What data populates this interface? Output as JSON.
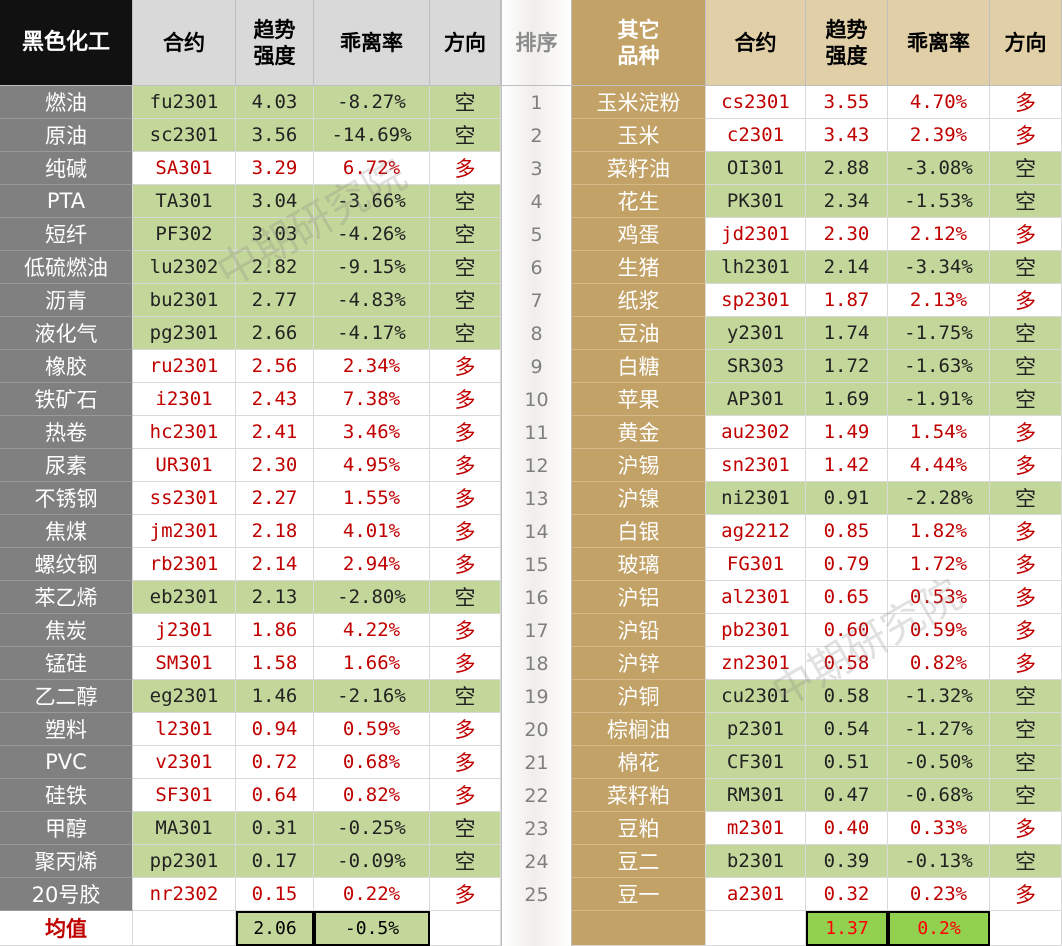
{
  "headers": {
    "left_category": "黑色化工",
    "contract": [
      "合约"
    ],
    "strength": [
      "趋势",
      "强度"
    ],
    "deviation": [
      "乖离率"
    ],
    "direction": [
      "方向"
    ],
    "rank": "排序",
    "right_category": [
      "其它",
      "品种"
    ]
  },
  "colors": {
    "short_bg": "#c4d79b",
    "long_text": "#c00000",
    "left_name_bg": "#808080",
    "right_name_bg": "#c2a266",
    "right_header_bg": "#e1cfa8",
    "left_header_bg": "#d9d9d9"
  },
  "left": [
    {
      "name": "燃油",
      "contract": "fu2301",
      "strength": "4.03",
      "deviation": "-8.27%",
      "direction": "空"
    },
    {
      "name": "原油",
      "contract": "sc2301",
      "strength": "3.56",
      "deviation": "-14.69%",
      "direction": "空"
    },
    {
      "name": "纯碱",
      "contract": "SA301",
      "strength": "3.29",
      "deviation": "6.72%",
      "direction": "多"
    },
    {
      "name": "PTA",
      "contract": "TA301",
      "strength": "3.04",
      "deviation": "-3.66%",
      "direction": "空"
    },
    {
      "name": "短纤",
      "contract": "PF302",
      "strength": "3.03",
      "deviation": "-4.26%",
      "direction": "空"
    },
    {
      "name": "低硫燃油",
      "contract": "lu2302",
      "strength": "2.82",
      "deviation": "-9.15%",
      "direction": "空"
    },
    {
      "name": "沥青",
      "contract": "bu2301",
      "strength": "2.77",
      "deviation": "-4.83%",
      "direction": "空"
    },
    {
      "name": "液化气",
      "contract": "pg2301",
      "strength": "2.66",
      "deviation": "-4.17%",
      "direction": "空"
    },
    {
      "name": "橡胶",
      "contract": "ru2301",
      "strength": "2.56",
      "deviation": "2.34%",
      "direction": "多"
    },
    {
      "name": "铁矿石",
      "contract": "i2301",
      "strength": "2.43",
      "deviation": "7.38%",
      "direction": "多"
    },
    {
      "name": "热卷",
      "contract": "hc2301",
      "strength": "2.41",
      "deviation": "3.46%",
      "direction": "多"
    },
    {
      "name": "尿素",
      "contract": "UR301",
      "strength": "2.30",
      "deviation": "4.95%",
      "direction": "多"
    },
    {
      "name": "不锈钢",
      "contract": "ss2301",
      "strength": "2.27",
      "deviation": "1.55%",
      "direction": "多"
    },
    {
      "name": "焦煤",
      "contract": "jm2301",
      "strength": "2.18",
      "deviation": "4.01%",
      "direction": "多"
    },
    {
      "name": "螺纹钢",
      "contract": "rb2301",
      "strength": "2.14",
      "deviation": "2.94%",
      "direction": "多"
    },
    {
      "name": "苯乙烯",
      "contract": "eb2301",
      "strength": "2.13",
      "deviation": "-2.80%",
      "direction": "空"
    },
    {
      "name": "焦炭",
      "contract": "j2301",
      "strength": "1.86",
      "deviation": "4.22%",
      "direction": "多"
    },
    {
      "name": "锰硅",
      "contract": "SM301",
      "strength": "1.58",
      "deviation": "1.66%",
      "direction": "多"
    },
    {
      "name": "乙二醇",
      "contract": "eg2301",
      "strength": "1.46",
      "deviation": "-2.16%",
      "direction": "空"
    },
    {
      "name": "塑料",
      "contract": "l2301",
      "strength": "0.94",
      "deviation": "0.59%",
      "direction": "多"
    },
    {
      "name": "PVC",
      "contract": "v2301",
      "strength": "0.72",
      "deviation": "0.68%",
      "direction": "多"
    },
    {
      "name": "硅铁",
      "contract": "SF301",
      "strength": "0.64",
      "deviation": "0.82%",
      "direction": "多"
    },
    {
      "name": "甲醇",
      "contract": "MA301",
      "strength": "0.31",
      "deviation": "-0.25%",
      "direction": "空"
    },
    {
      "name": "聚丙烯",
      "contract": "pp2301",
      "strength": "0.17",
      "deviation": "-0.09%",
      "direction": "空"
    },
    {
      "name": "20号胶",
      "contract": "nr2302",
      "strength": "0.15",
      "deviation": "0.22%",
      "direction": "多"
    }
  ],
  "ranks": [
    "1",
    "2",
    "3",
    "4",
    "5",
    "6",
    "7",
    "8",
    "9",
    "10",
    "11",
    "12",
    "13",
    "14",
    "15",
    "16",
    "17",
    "18",
    "19",
    "20",
    "21",
    "22",
    "23",
    "24",
    "25"
  ],
  "right": [
    {
      "name": "玉米淀粉",
      "contract": "cs2301",
      "strength": "3.55",
      "deviation": "4.70%",
      "direction": "多"
    },
    {
      "name": "玉米",
      "contract": "c2301",
      "strength": "3.43",
      "deviation": "2.39%",
      "direction": "多"
    },
    {
      "name": "菜籽油",
      "contract": "OI301",
      "strength": "2.88",
      "deviation": "-3.08%",
      "direction": "空"
    },
    {
      "name": "花生",
      "contract": "PK301",
      "strength": "2.34",
      "deviation": "-1.53%",
      "direction": "空"
    },
    {
      "name": "鸡蛋",
      "contract": "jd2301",
      "strength": "2.30",
      "deviation": "2.12%",
      "direction": "多"
    },
    {
      "name": "生猪",
      "contract": "lh2301",
      "strength": "2.14",
      "deviation": "-3.34%",
      "direction": "空"
    },
    {
      "name": "纸浆",
      "contract": "sp2301",
      "strength": "1.87",
      "deviation": "2.13%",
      "direction": "多"
    },
    {
      "name": "豆油",
      "contract": "y2301",
      "strength": "1.74",
      "deviation": "-1.75%",
      "direction": "空"
    },
    {
      "name": "白糖",
      "contract": "SR303",
      "strength": "1.72",
      "deviation": "-1.63%",
      "direction": "空"
    },
    {
      "name": "苹果",
      "contract": "AP301",
      "strength": "1.69",
      "deviation": "-1.91%",
      "direction": "空"
    },
    {
      "name": "黄金",
      "contract": "au2302",
      "strength": "1.49",
      "deviation": "1.54%",
      "direction": "多"
    },
    {
      "name": "沪锡",
      "contract": "sn2301",
      "strength": "1.42",
      "deviation": "4.44%",
      "direction": "多"
    },
    {
      "name": "沪镍",
      "contract": "ni2301",
      "strength": "0.91",
      "deviation": "-2.28%",
      "direction": "空"
    },
    {
      "name": "白银",
      "contract": "ag2212",
      "strength": "0.85",
      "deviation": "1.82%",
      "direction": "多"
    },
    {
      "name": "玻璃",
      "contract": "FG301",
      "strength": "0.79",
      "deviation": "1.72%",
      "direction": "多"
    },
    {
      "name": "沪铝",
      "contract": "al2301",
      "strength": "0.65",
      "deviation": "0.53%",
      "direction": "多"
    },
    {
      "name": "沪铅",
      "contract": "pb2301",
      "strength": "0.60",
      "deviation": "0.59%",
      "direction": "多"
    },
    {
      "name": "沪锌",
      "contract": "zn2301",
      "strength": "0.58",
      "deviation": "0.82%",
      "direction": "多"
    },
    {
      "name": "沪铜",
      "contract": "cu2301",
      "strength": "0.58",
      "deviation": "-1.32%",
      "direction": "空"
    },
    {
      "name": "棕榈油",
      "contract": "p2301",
      "strength": "0.54",
      "deviation": "-1.27%",
      "direction": "空"
    },
    {
      "name": "棉花",
      "contract": "CF301",
      "strength": "0.51",
      "deviation": "-0.50%",
      "direction": "空"
    },
    {
      "name": "菜籽粕",
      "contract": "RM301",
      "strength": "0.47",
      "deviation": "-0.68%",
      "direction": "空"
    },
    {
      "name": "豆粕",
      "contract": "m2301",
      "strength": "0.40",
      "deviation": "0.33%",
      "direction": "多"
    },
    {
      "name": "豆二",
      "contract": "b2301",
      "strength": "0.39",
      "deviation": "-0.13%",
      "direction": "空"
    },
    {
      "name": "豆一",
      "contract": "a2301",
      "strength": "0.32",
      "deviation": "0.23%",
      "direction": "多"
    }
  ],
  "footer": {
    "label": "均值",
    "left_strength_avg": "2.06",
    "left_deviation_avg": "-0.5%",
    "right_strength_avg": "1.37",
    "right_deviation_avg": "0.2%"
  },
  "watermarks": [
    "中期研究院",
    "中期研究院"
  ]
}
